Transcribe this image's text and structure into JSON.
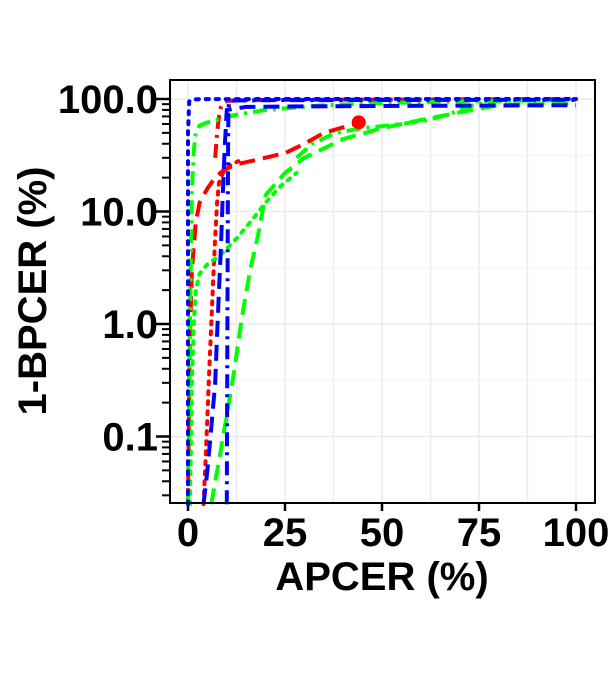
{
  "chart_data": {
    "type": "line",
    "title": "",
    "xlabel": "APCER (%)",
    "ylabel": "1-BPCER (%)",
    "xlim": [
      0,
      100
    ],
    "ylim": [
      0.025,
      100
    ],
    "y_scale": "log",
    "grid": true,
    "x_ticks": [
      0,
      25,
      50,
      75,
      100
    ],
    "x_tick_labels": [
      "0",
      "25",
      "50",
      "75",
      "100"
    ],
    "y_ticks": [
      0.1,
      1.0,
      10.0,
      100.0
    ],
    "y_tick_labels": [
      "0.1",
      "1.0",
      "10.0",
      "100.0"
    ],
    "series": [
      {
        "color": "#ff0000",
        "dash": "dashed",
        "x": [
          0,
          0.3,
          0.6,
          1,
          2,
          3,
          5,
          7,
          9,
          12,
          18,
          25,
          30,
          35,
          40,
          45
        ],
        "y": [
          0.025,
          0.3,
          1,
          3,
          8,
          12,
          16,
          20,
          23,
          26,
          29,
          33,
          40,
          50,
          56,
          62
        ]
      },
      {
        "color": "#ff0000",
        "dash": "dotted",
        "x": [
          4,
          4.5,
          5,
          5.5,
          6,
          6.5,
          7,
          7.5,
          8,
          9,
          11,
          13
        ],
        "y": [
          0.025,
          0.06,
          0.15,
          0.4,
          1,
          2.5,
          6,
          12,
          18,
          22,
          26,
          28
        ]
      },
      {
        "color": "#ff0000",
        "dash": "dashdot",
        "x": [
          7,
          7.5,
          8,
          8.5,
          9,
          10,
          13,
          20,
          35,
          60,
          80,
          100
        ],
        "y": [
          30,
          50,
          70,
          85,
          92,
          96,
          97.5,
          98,
          98.5,
          99,
          99.5,
          100
        ]
      },
      {
        "color": "#00ff00",
        "dash": "dashed",
        "x": [
          6,
          7,
          8,
          9,
          10,
          11,
          12,
          13,
          14,
          16,
          18,
          20,
          25,
          30,
          40,
          50,
          60,
          70,
          75,
          80,
          100
        ],
        "y": [
          0.025,
          0.04,
          0.06,
          0.1,
          0.15,
          0.25,
          0.4,
          0.7,
          1.2,
          3,
          6,
          14,
          22,
          30,
          44,
          55,
          65,
          76,
          82,
          88,
          92
        ]
      },
      {
        "color": "#00ff00",
        "dash": "dotted",
        "x": [
          0.5,
          1,
          1.5,
          2,
          3,
          5,
          8,
          12,
          16,
          20,
          24,
          28
        ],
        "y": [
          0.025,
          0.3,
          1,
          2,
          2.8,
          3.4,
          4,
          5.5,
          8,
          12,
          17,
          22
        ]
      },
      {
        "color": "#00ff00",
        "dash": "dashdot",
        "x": [
          28,
          32,
          38,
          45,
          55,
          62,
          68,
          72,
          76,
          80,
          100
        ],
        "y": [
          30,
          40,
          50,
          55,
          60,
          65,
          75,
          85,
          92,
          96,
          100
        ]
      },
      {
        "color": "#00ff00",
        "dash": "dashdot",
        "x": [
          0,
          0.2,
          0.5,
          0.8,
          1,
          1.5,
          2,
          3,
          5,
          8,
          12,
          20,
          35,
          55,
          75,
          100
        ],
        "y": [
          0.025,
          0.1,
          1,
          5,
          15,
          35,
          50,
          58,
          62,
          66,
          72,
          80,
          88,
          93,
          96,
          98
        ]
      },
      {
        "color": "#0000ff",
        "dash": "dashed",
        "x": [
          4,
          5,
          6,
          7,
          7.5,
          8,
          8.5,
          9,
          9.5,
          10,
          15,
          30,
          60,
          100
        ],
        "y": [
          0.025,
          0.05,
          0.12,
          0.3,
          0.8,
          2,
          5,
          15,
          40,
          80,
          85,
          86,
          87,
          88
        ]
      },
      {
        "color": "#0000ff",
        "dash": "dashdot",
        "x": [
          10,
          10.1,
          10.2,
          10.3,
          10.4,
          10.6,
          12,
          20,
          50,
          100
        ],
        "y": [
          0.025,
          0.3,
          3,
          30,
          80,
          95,
          97,
          97.5,
          98,
          98.5
        ]
      },
      {
        "color": "#0000ff",
        "dash": "dotted",
        "x": [
          0,
          0,
          0.3,
          1,
          3,
          10,
          30,
          60,
          100
        ],
        "y": [
          0.025,
          50,
          95,
          99,
          99.5,
          99.8,
          100,
          100,
          100
        ]
      }
    ],
    "markers": [
      {
        "x": 44,
        "y": 62,
        "color": "#ff0000"
      }
    ]
  }
}
